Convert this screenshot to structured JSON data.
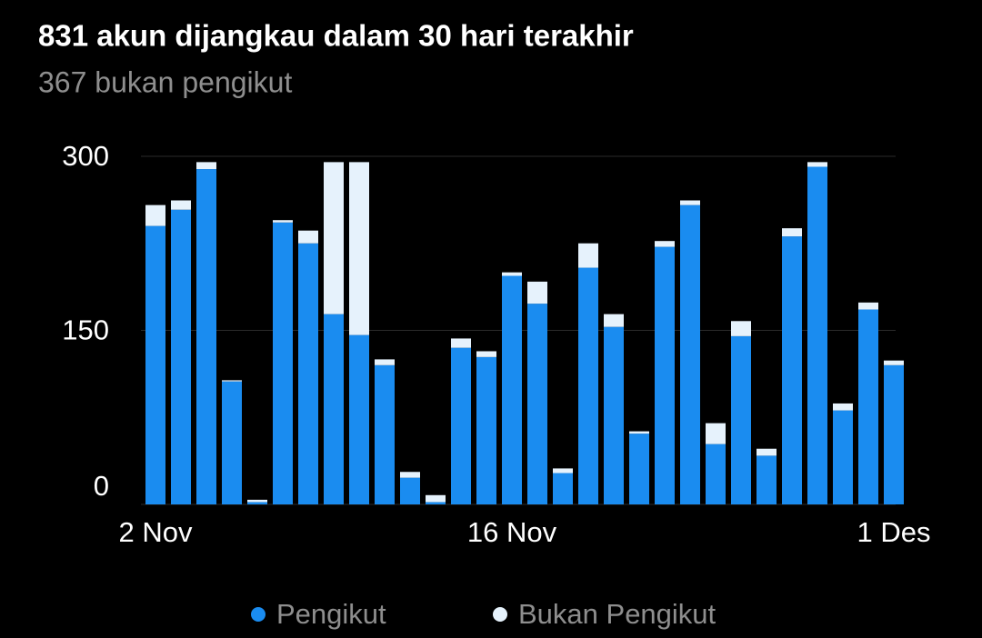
{
  "chart_data": {
    "type": "stacked_bar",
    "title": "831 akun dijangkau dalam 30 hari terakhir",
    "subtitle": "367 bukan pengikut",
    "categories": [
      "2 Nov",
      null,
      null,
      null,
      null,
      null,
      null,
      null,
      null,
      null,
      null,
      null,
      null,
      null,
      "16 Nov",
      null,
      null,
      null,
      null,
      null,
      null,
      null,
      null,
      null,
      null,
      null,
      null,
      null,
      null,
      "1 Des"
    ],
    "series": [
      {
        "name": "Pengikut",
        "color": "#1a8cf0",
        "values": [
          240,
          254,
          289,
          106,
          2,
          243,
          225,
          164,
          146,
          120,
          23,
          2,
          135,
          127,
          197,
          173,
          27,
          204,
          153,
          61,
          222,
          258,
          52,
          145,
          42,
          231,
          291,
          81,
          168,
          120
        ]
      },
      {
        "name": "Bukan Pengikut",
        "color": "#e6f2fc",
        "values": [
          18,
          8,
          6,
          1,
          2,
          2,
          11,
          131,
          149,
          5,
          5,
          6,
          8,
          5,
          3,
          19,
          4,
          21,
          11,
          2,
          5,
          4,
          18,
          13,
          6,
          7,
          4,
          6,
          6,
          4
        ]
      }
    ],
    "ylim": [
      0,
      300
    ],
    "yticks": [
      0,
      150,
      300
    ],
    "grid": true
  }
}
